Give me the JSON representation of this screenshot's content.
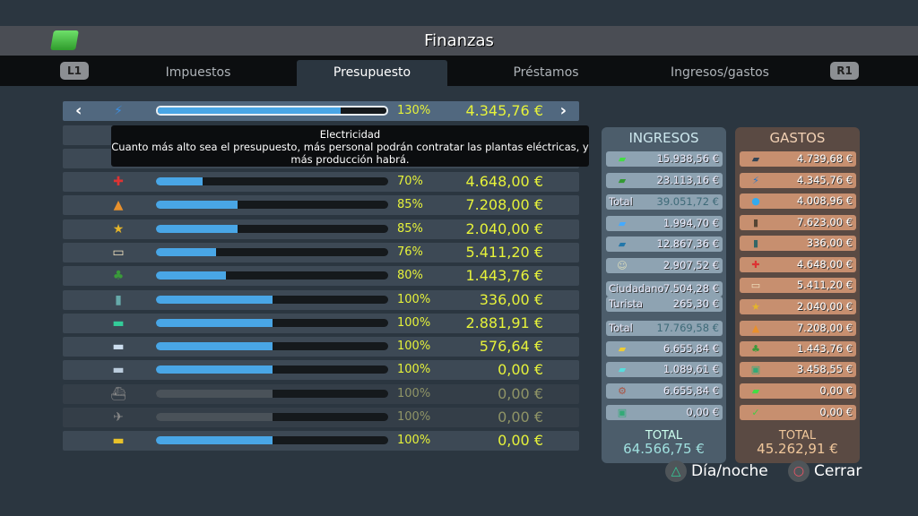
{
  "title": "Finanzas",
  "tabs": [
    "Impuestos",
    "Presupuesto",
    "Préstamos",
    "Ingresos/gastos"
  ],
  "shoulders": {
    "left": "L1",
    "right": "R1"
  },
  "tooltip": {
    "title": "Electricidad",
    "text": "Cuanto más alto sea el presupuesto, más personal podrán contratar las plantas eléctricas, y más producción habrá."
  },
  "selected": {
    "icon": "lightning-icon",
    "glyph": "⚡",
    "percent": 130,
    "pct_label": "130%",
    "amount": "4.345,76 €"
  },
  "rows": [
    {
      "name": "healthcare",
      "glyph": "✚",
      "percent": 70,
      "pct_label": "70%",
      "amount": "4.648,00 €",
      "color": "#d33"
    },
    {
      "name": "fire",
      "glyph": "▲",
      "percent": 85,
      "pct_label": "85%",
      "amount": "7.208,00 €",
      "color": "#e8902c"
    },
    {
      "name": "police",
      "glyph": "★",
      "percent": 85,
      "pct_label": "85%",
      "amount": "2.040,00 €",
      "color": "#e4b52a"
    },
    {
      "name": "education",
      "glyph": "▭",
      "percent": 76,
      "pct_label": "76%",
      "amount": "5.411,20 €",
      "color": "#f1e3c0"
    },
    {
      "name": "parks",
      "glyph": "♣",
      "percent": 80,
      "pct_label": "80%",
      "amount": "1.443,76 €",
      "color": "#3a9a3a"
    },
    {
      "name": "monument",
      "glyph": "▮",
      "percent": 100,
      "pct_label": "100%",
      "amount": "336,00 €",
      "color": "#6aa"
    },
    {
      "name": "bus",
      "glyph": "▬",
      "percent": 100,
      "pct_label": "100%",
      "amount": "2.881,91 €",
      "color": "#3c9"
    },
    {
      "name": "metro",
      "glyph": "▬",
      "percent": 100,
      "pct_label": "100%",
      "amount": "576,64 €",
      "color": "#cde"
    },
    {
      "name": "train",
      "glyph": "▬",
      "percent": 100,
      "pct_label": "100%",
      "amount": "0,00 €",
      "color": "#bcd"
    },
    {
      "name": "ship",
      "glyph": "⛴",
      "percent": 100,
      "pct_label": "100%",
      "amount": "0,00 €",
      "color": "#888",
      "dim": true
    },
    {
      "name": "plane",
      "glyph": "✈",
      "percent": 100,
      "pct_label": "100%",
      "amount": "0,00 €",
      "color": "#888",
      "dim": true
    },
    {
      "name": "taxi",
      "glyph": "▬",
      "percent": 100,
      "pct_label": "100%",
      "amount": "0,00 €",
      "color": "#e8c22a"
    }
  ],
  "ingresos": {
    "title": "INGRESOS",
    "rows": [
      {
        "glyph": "▰",
        "color": "#4d4",
        "value": "15.938,56 €"
      },
      {
        "glyph": "▰",
        "color": "#393",
        "value": "23.113,16 €"
      },
      {
        "label": "Total",
        "value": "39.051,72 €",
        "total": true
      },
      {
        "glyph": "▰",
        "color": "#4af",
        "value": "1.994,70 €"
      },
      {
        "glyph": "▰",
        "color": "#27a",
        "value": "12.867,36 €"
      },
      {
        "glyph": "☺",
        "color": "#ddb",
        "value": "2.907,52 €"
      },
      {
        "label": "Ciudadano",
        "value": "7.504,28 €"
      },
      {
        "label": "Turista",
        "value": "265,30 €"
      },
      {
        "label": "Total",
        "value": "17.769,58 €",
        "total": true
      },
      {
        "glyph": "▰",
        "color": "#ec3",
        "value": "6.655,84 €"
      },
      {
        "glyph": "▰",
        "color": "#5dd",
        "value": "1.089,61 €"
      },
      {
        "glyph": "⚙",
        "color": "#a54",
        "value": "6.655,84 €"
      },
      {
        "glyph": "▣",
        "color": "#3a7",
        "value": "0,00 €"
      }
    ],
    "total_label": "TOTAL",
    "total": "64.566,75 €"
  },
  "gastos": {
    "title": "GASTOS",
    "rows": [
      {
        "glyph": "▰",
        "color": "#345",
        "value": "4.739,68 €"
      },
      {
        "glyph": "⚡",
        "color": "#27c",
        "value": "4.345,76 €"
      },
      {
        "glyph": "●",
        "color": "#3ae",
        "value": "4.008,96 €"
      },
      {
        "glyph": "▮",
        "color": "#543",
        "value": "7.623,00 €"
      },
      {
        "glyph": "▮",
        "color": "#366",
        "value": "336,00 €"
      },
      {
        "glyph": "✚",
        "color": "#d33",
        "value": "4.648,00 €"
      },
      {
        "glyph": "▭",
        "color": "#f1e3c0",
        "value": "5.411,20 €"
      },
      {
        "glyph": "★",
        "color": "#e4b52a",
        "value": "2.040,00 €"
      },
      {
        "glyph": "▲",
        "color": "#e8902c",
        "value": "7.208,00 €"
      },
      {
        "glyph": "♣",
        "color": "#3a9a3a",
        "value": "1.443,76 €"
      },
      {
        "glyph": "▣",
        "color": "#3a7",
        "value": "3.458,55 €"
      },
      {
        "glyph": "▰",
        "color": "#4d4",
        "value": "0,00 €"
      },
      {
        "glyph": "✓",
        "color": "#4c4",
        "value": "0,00 €"
      }
    ],
    "total_label": "TOTAL",
    "total": "45.262,91 €"
  },
  "buttons": {
    "daynight": "Día/noche",
    "close": "Cerrar"
  }
}
